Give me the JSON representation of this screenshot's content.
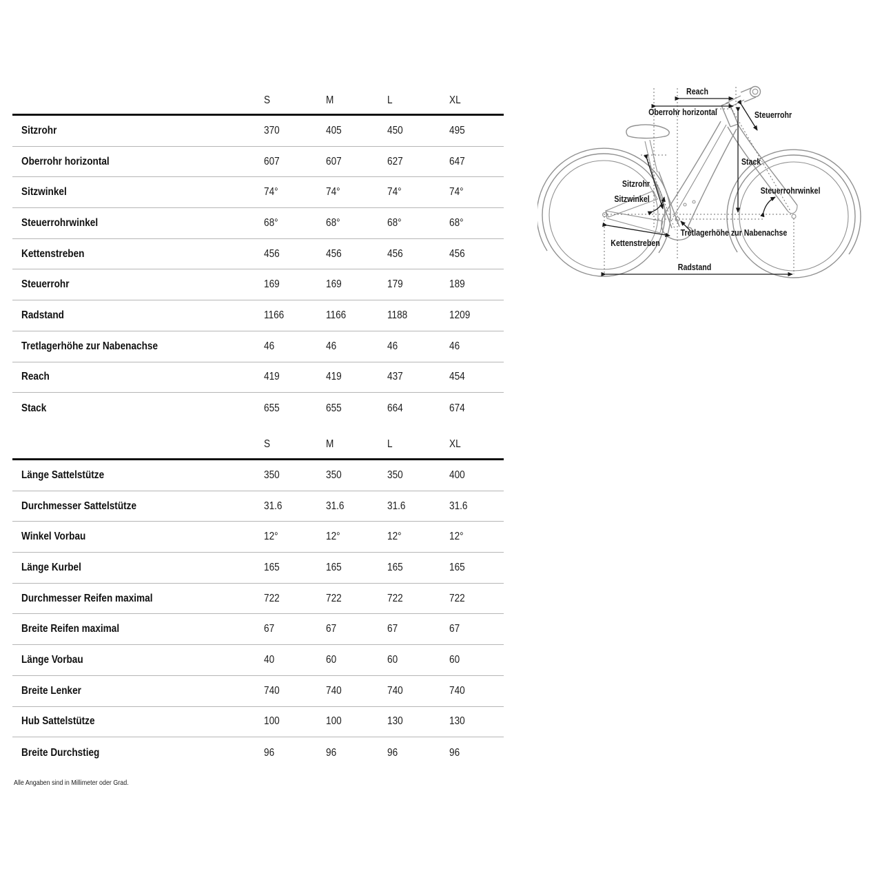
{
  "tables": [
    {
      "id": "frame-geometry",
      "columns": [
        "S",
        "M",
        "L",
        "XL"
      ],
      "rows": [
        {
          "label": "Sitzrohr",
          "values": [
            "370",
            "405",
            "450",
            "495"
          ]
        },
        {
          "label": "Oberrohr horizontal",
          "values": [
            "607",
            "607",
            "627",
            "647"
          ]
        },
        {
          "label": "Sitzwinkel",
          "values": [
            "74°",
            "74°",
            "74°",
            "74°"
          ]
        },
        {
          "label": "Steuerrohrwinkel",
          "values": [
            "68°",
            "68°",
            "68°",
            "68°"
          ]
        },
        {
          "label": "Kettenstreben",
          "values": [
            "456",
            "456",
            "456",
            "456"
          ]
        },
        {
          "label": "Steuerrohr",
          "values": [
            "169",
            "169",
            "179",
            "189"
          ]
        },
        {
          "label": "Radstand",
          "values": [
            "1166",
            "1166",
            "1188",
            "1209"
          ]
        },
        {
          "label": "Tretlagerhöhe zur Nabenachse",
          "values": [
            "46",
            "46",
            "46",
            "46"
          ]
        },
        {
          "label": "Reach",
          "values": [
            "419",
            "419",
            "437",
            "454"
          ]
        },
        {
          "label": "Stack",
          "values": [
            "655",
            "655",
            "664",
            "674"
          ]
        }
      ]
    },
    {
      "id": "components",
      "columns": [
        "S",
        "M",
        "L",
        "XL"
      ],
      "rows": [
        {
          "label": "Länge Sattelstütze",
          "values": [
            "350",
            "350",
            "350",
            "400"
          ]
        },
        {
          "label": "Durchmesser Sattelstütze",
          "values": [
            "31.6",
            "31.6",
            "31.6",
            "31.6"
          ]
        },
        {
          "label": "Winkel Vorbau",
          "values": [
            "12°",
            "12°",
            "12°",
            "12°"
          ]
        },
        {
          "label": "Länge Kurbel",
          "values": [
            "165",
            "165",
            "165",
            "165"
          ]
        },
        {
          "label": "Durchmesser Reifen maximal",
          "values": [
            "722",
            "722",
            "722",
            "722"
          ]
        },
        {
          "label": "Breite Reifen maximal",
          "values": [
            "67",
            "67",
            "67",
            "67"
          ]
        },
        {
          "label": "Länge Vorbau",
          "values": [
            "40",
            "60",
            "60",
            "60"
          ]
        },
        {
          "label": "Breite Lenker",
          "values": [
            "740",
            "740",
            "740",
            "740"
          ]
        },
        {
          "label": "Hub Sattelstütze",
          "values": [
            "100",
            "100",
            "130",
            "130"
          ]
        },
        {
          "label": "Breite Durchstieg",
          "values": [
            "96",
            "96",
            "96",
            "96"
          ]
        }
      ]
    }
  ],
  "footnote": "Alle Angaben sind in Millimeter oder Grad.",
  "diagram": {
    "labels": {
      "reach": "Reach",
      "oberrohr_horizontal": "Oberrohr horizontal",
      "steuerrohr": "Steuerrohr",
      "stack": "Stack",
      "sitzrohr": "Sitzrohr",
      "sitzwinkel": "Sitzwinkel",
      "steuerrohrwinkel": "Steuerrohrwinkel",
      "tretlagerhoehe": "Tretlagerhöhe zur Nabenachse",
      "kettenstreben": "Kettenstreben",
      "radstand": "Radstand"
    },
    "colors": {
      "line_art": "#909090",
      "annotation": "#1a1a1a",
      "separator": "#b5b5b5",
      "header_rule": "#111111"
    }
  }
}
